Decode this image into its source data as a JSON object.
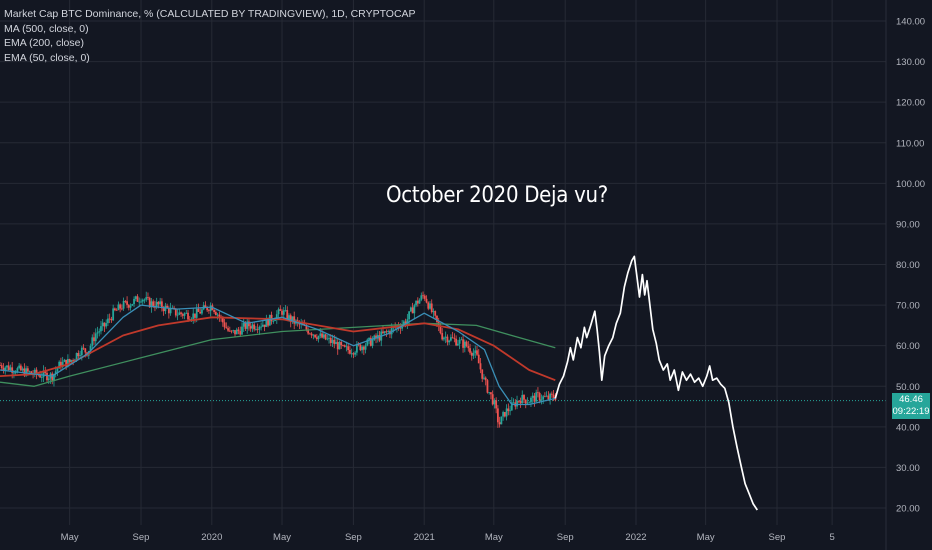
{
  "legend": {
    "title": "Market Cap BTC Dominance, % (CALCULATED BY TRADINGVIEW), 1D, CRYPTOCAP",
    "lines": [
      "MA (500, close, 0)",
      "EMA (200, close)",
      "EMA (50, close, 0)"
    ]
  },
  "annotation": "October 2020 Deja vu?",
  "price_tag": {
    "value": "46.46",
    "countdown": "09:22:19"
  },
  "colors": {
    "background": "#131722",
    "grid": "#262a35",
    "candle_up": "#26a69a",
    "candle_down": "#ef5350",
    "ma500": "#3f8f5e",
    "ema200": "#c0392b",
    "ema50": "#3a8fb7",
    "projection": "#ffffff",
    "current_price_line": "#26a69a"
  },
  "chart_data": {
    "type": "line",
    "title": "Market Cap BTC Dominance, % (CALCULATED BY TRADINGVIEW), 1D, CRYPTOCAP",
    "annotation": "October 2020 Deja vu?",
    "xlabel": "",
    "ylabel": "",
    "ylim": [
      15.5,
      143
    ],
    "x_axis": {
      "type": "date",
      "tick_labels": [
        "May",
        "Sep",
        "2020",
        "May",
        "Sep",
        "2021",
        "May",
        "Sep",
        "2022",
        "May",
        "Sep",
        "5"
      ],
      "tick_dates": [
        "2019-05-01",
        "2019-09-01",
        "2020-01-01",
        "2020-05-01",
        "2020-09-01",
        "2021-01-01",
        "2021-05-01",
        "2021-09-01",
        "2022-01-01",
        "2022-05-01",
        "2022-09-01",
        "2022-12-05"
      ]
    },
    "y_axis": {
      "tick_values": [
        20,
        30,
        40,
        50,
        60,
        70,
        80,
        90,
        100,
        110,
        120,
        130,
        140
      ],
      "tick_labels": [
        "20.00",
        "30.00",
        "40.00",
        "50.00",
        "60.00",
        "70.00",
        "80.00",
        "90.00",
        "100.00",
        "110.00",
        "120.00",
        "130.00",
        "140.00"
      ]
    },
    "grid": true,
    "current_price": 46.46,
    "series": [
      {
        "name": "Market Cap BTC Dominance",
        "kind": "price",
        "points": [
          [
            "2019-01-01",
            55.2
          ],
          [
            "2019-02-01",
            54.0
          ],
          [
            "2019-03-01",
            53.0
          ],
          [
            "2019-04-01",
            52.5
          ],
          [
            "2019-04-15",
            55.5
          ],
          [
            "2019-05-01",
            56.0
          ],
          [
            "2019-05-20",
            59.0
          ],
          [
            "2019-06-01",
            58.5
          ],
          [
            "2019-06-15",
            63.0
          ],
          [
            "2019-07-01",
            65.0
          ],
          [
            "2019-07-15",
            68.0
          ],
          [
            "2019-08-01",
            70.0
          ],
          [
            "2019-08-15",
            70.5
          ],
          [
            "2019-09-01",
            72.0
          ],
          [
            "2019-09-15",
            70.5
          ],
          [
            "2019-10-01",
            70.0
          ],
          [
            "2019-11-01",
            68.0
          ],
          [
            "2019-12-01",
            67.5
          ],
          [
            "2020-01-01",
            70.0
          ],
          [
            "2020-01-15",
            67.0
          ],
          [
            "2020-02-01",
            63.0
          ],
          [
            "2020-02-15",
            63.5
          ],
          [
            "2020-03-01",
            65.0
          ],
          [
            "2020-03-15",
            65.0
          ],
          [
            "2020-04-01",
            65.5
          ],
          [
            "2020-05-01",
            68.5
          ],
          [
            "2020-05-15",
            66.5
          ],
          [
            "2020-06-01",
            65.0
          ],
          [
            "2020-07-01",
            62.5
          ],
          [
            "2020-08-01",
            60.5
          ],
          [
            "2020-08-15",
            59.0
          ],
          [
            "2020-09-01",
            59.0
          ],
          [
            "2020-10-01",
            61.0
          ],
          [
            "2020-11-01",
            63.5
          ],
          [
            "2020-12-01",
            66.0
          ],
          [
            "2020-12-15",
            70.0
          ],
          [
            "2021-01-01",
            72.5
          ],
          [
            "2021-01-15",
            68.0
          ],
          [
            "2021-02-01",
            62.5
          ],
          [
            "2021-03-01",
            61.0
          ],
          [
            "2021-03-15",
            60.0
          ],
          [
            "2021-04-01",
            57.5
          ],
          [
            "2021-04-15",
            51.0
          ],
          [
            "2021-05-01",
            46.0
          ],
          [
            "2021-05-10",
            40.5
          ],
          [
            "2021-05-20",
            43.5
          ],
          [
            "2021-06-01",
            45.0
          ],
          [
            "2021-06-15",
            47.0
          ],
          [
            "2021-07-01",
            46.5
          ],
          [
            "2021-07-15",
            47.5
          ],
          [
            "2021-08-01",
            47.0
          ],
          [
            "2021-08-15",
            47.5
          ]
        ]
      },
      {
        "name": "MA (500, close, 0)",
        "kind": "indicator",
        "points": [
          [
            "2019-01-01",
            51.0
          ],
          [
            "2019-03-01",
            50.0
          ],
          [
            "2019-05-01",
            52.5
          ],
          [
            "2019-09-01",
            57.0
          ],
          [
            "2020-01-01",
            61.5
          ],
          [
            "2020-05-01",
            63.5
          ],
          [
            "2020-09-01",
            64.5
          ],
          [
            "2021-01-01",
            65.5
          ],
          [
            "2021-04-01",
            65.0
          ],
          [
            "2021-06-01",
            62.5
          ],
          [
            "2021-08-15",
            59.5
          ]
        ]
      },
      {
        "name": "EMA (200, close)",
        "kind": "indicator",
        "points": [
          [
            "2019-01-01",
            52.5
          ],
          [
            "2019-03-01",
            53.0
          ],
          [
            "2019-05-01",
            55.5
          ],
          [
            "2019-08-01",
            62.5
          ],
          [
            "2019-10-01",
            65.0
          ],
          [
            "2020-01-01",
            67.0
          ],
          [
            "2020-05-01",
            66.5
          ],
          [
            "2020-09-01",
            63.5
          ],
          [
            "2021-01-01",
            65.5
          ],
          [
            "2021-03-01",
            64.0
          ],
          [
            "2021-05-01",
            60.0
          ],
          [
            "2021-07-01",
            54.0
          ],
          [
            "2021-08-15",
            51.5
          ]
        ]
      },
      {
        "name": "EMA (50, close, 0)",
        "kind": "indicator",
        "points": [
          [
            "2019-01-01",
            54.0
          ],
          [
            "2019-04-01",
            52.5
          ],
          [
            "2019-06-01",
            58.0
          ],
          [
            "2019-08-01",
            67.0
          ],
          [
            "2019-09-01",
            70.0
          ],
          [
            "2019-11-01",
            69.0
          ],
          [
            "2020-01-01",
            69.5
          ],
          [
            "2020-03-01",
            65.5
          ],
          [
            "2020-05-01",
            67.0
          ],
          [
            "2020-07-01",
            64.0
          ],
          [
            "2020-09-01",
            60.0
          ],
          [
            "2020-11-01",
            63.0
          ],
          [
            "2021-01-01",
            68.0
          ],
          [
            "2021-03-01",
            63.5
          ],
          [
            "2021-04-15",
            59.0
          ],
          [
            "2021-05-10",
            50.0
          ],
          [
            "2021-06-01",
            45.5
          ],
          [
            "2021-07-01",
            45.5
          ],
          [
            "2021-08-15",
            47.0
          ]
        ]
      },
      {
        "name": "Projection",
        "kind": "drawing",
        "points": [
          [
            "2021-08-15",
            47.0
          ],
          [
            "2021-08-22",
            50.5
          ],
          [
            "2021-08-29",
            52.5
          ],
          [
            "2021-09-05",
            56.0
          ],
          [
            "2021-09-10",
            59.5
          ],
          [
            "2021-09-15",
            56.5
          ],
          [
            "2021-09-22",
            62.0
          ],
          [
            "2021-09-28",
            59.5
          ],
          [
            "2021-10-04",
            64.5
          ],
          [
            "2021-10-08",
            62.0
          ],
          [
            "2021-10-15",
            65.0
          ],
          [
            "2021-10-22",
            68.5
          ],
          [
            "2021-10-26",
            64.0
          ],
          [
            "2021-10-30",
            58.5
          ],
          [
            "2021-11-03",
            51.5
          ],
          [
            "2021-11-08",
            57.5
          ],
          [
            "2021-11-15",
            60.0
          ],
          [
            "2021-11-22",
            62.0
          ],
          [
            "2021-11-28",
            65.5
          ],
          [
            "2021-12-05",
            68.0
          ],
          [
            "2021-12-12",
            74.5
          ],
          [
            "2021-12-18",
            78.0
          ],
          [
            "2021-12-25",
            81.0
          ],
          [
            "2021-12-29",
            82.0
          ],
          [
            "2022-01-03",
            76.5
          ],
          [
            "2022-01-07",
            72.0
          ],
          [
            "2022-01-12",
            77.5
          ],
          [
            "2022-01-16",
            72.5
          ],
          [
            "2022-01-20",
            76.0
          ],
          [
            "2022-01-25",
            70.0
          ],
          [
            "2022-01-30",
            64.0
          ],
          [
            "2022-02-05",
            60.5
          ],
          [
            "2022-02-10",
            56.5
          ],
          [
            "2022-02-17",
            54.0
          ],
          [
            "2022-02-24",
            55.5
          ],
          [
            "2022-03-01",
            51.5
          ],
          [
            "2022-03-08",
            54.0
          ],
          [
            "2022-03-15",
            49.0
          ],
          [
            "2022-03-22",
            53.5
          ],
          [
            "2022-03-29",
            51.5
          ],
          [
            "2022-04-05",
            53.0
          ],
          [
            "2022-04-12",
            51.0
          ],
          [
            "2022-04-19",
            52.0
          ],
          [
            "2022-04-26",
            50.0
          ],
          [
            "2022-05-03",
            52.5
          ],
          [
            "2022-05-08",
            55.0
          ],
          [
            "2022-05-13",
            51.5
          ],
          [
            "2022-05-20",
            52.0
          ],
          [
            "2022-05-27",
            50.5
          ],
          [
            "2022-06-03",
            49.5
          ],
          [
            "2022-06-10",
            46.0
          ],
          [
            "2022-06-17",
            40.0
          ],
          [
            "2022-06-24",
            35.0
          ],
          [
            "2022-07-01",
            30.5
          ],
          [
            "2022-07-08",
            26.0
          ],
          [
            "2022-07-15",
            23.5
          ],
          [
            "2022-07-22",
            21.0
          ],
          [
            "2022-07-29",
            19.5
          ]
        ]
      }
    ]
  }
}
